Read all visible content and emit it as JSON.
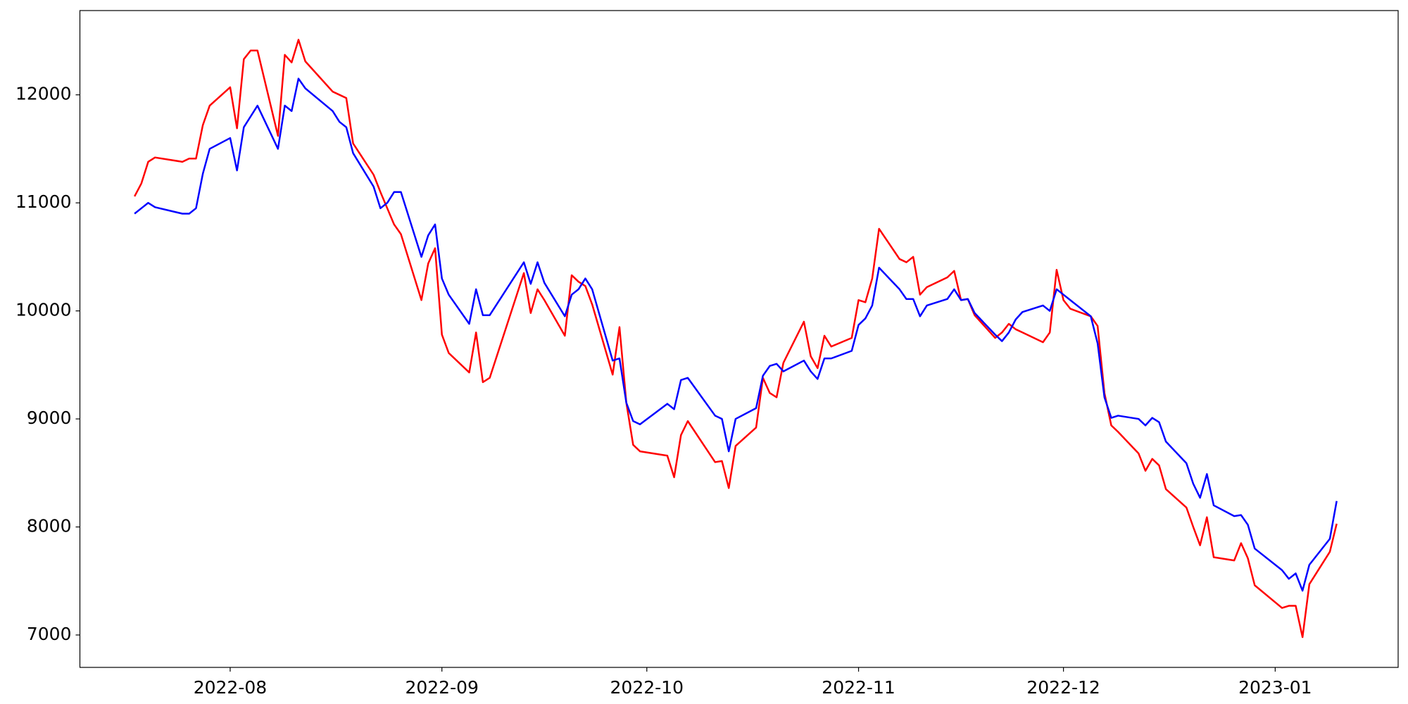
{
  "chart_data": {
    "type": "line",
    "x": [
      "2022-07-18",
      "2022-07-19",
      "2022-07-20",
      "2022-07-21",
      "2022-07-25",
      "2022-07-26",
      "2022-07-27",
      "2022-07-28",
      "2022-07-29",
      "2022-08-01",
      "2022-08-02",
      "2022-08-03",
      "2022-08-04",
      "2022-08-05",
      "2022-08-08",
      "2022-08-09",
      "2022-08-10",
      "2022-08-11",
      "2022-08-12",
      "2022-08-16",
      "2022-08-17",
      "2022-08-18",
      "2022-08-19",
      "2022-08-22",
      "2022-08-23",
      "2022-08-24",
      "2022-08-25",
      "2022-08-26",
      "2022-08-29",
      "2022-08-30",
      "2022-08-31",
      "2022-09-01",
      "2022-09-02",
      "2022-09-05",
      "2022-09-06",
      "2022-09-07",
      "2022-09-08",
      "2022-09-13",
      "2022-09-14",
      "2022-09-15",
      "2022-09-16",
      "2022-09-19",
      "2022-09-20",
      "2022-09-21",
      "2022-09-22",
      "2022-09-23",
      "2022-09-26",
      "2022-09-27",
      "2022-09-28",
      "2022-09-29",
      "2022-09-30",
      "2022-10-04",
      "2022-10-05",
      "2022-10-06",
      "2022-10-07",
      "2022-10-11",
      "2022-10-12",
      "2022-10-13",
      "2022-10-14",
      "2022-10-17",
      "2022-10-18",
      "2022-10-19",
      "2022-10-20",
      "2022-10-21",
      "2022-10-24",
      "2022-10-25",
      "2022-10-26",
      "2022-10-27",
      "2022-10-28",
      "2022-10-31",
      "2022-11-01",
      "2022-11-02",
      "2022-11-03",
      "2022-11-04",
      "2022-11-07",
      "2022-11-08",
      "2022-11-09",
      "2022-11-10",
      "2022-11-11",
      "2022-11-14",
      "2022-11-15",
      "2022-11-16",
      "2022-11-17",
      "2022-11-18",
      "2022-11-21",
      "2022-11-22",
      "2022-11-23",
      "2022-11-24",
      "2022-11-25",
      "2022-11-28",
      "2022-11-29",
      "2022-11-30",
      "2022-12-01",
      "2022-12-02",
      "2022-12-05",
      "2022-12-06",
      "2022-12-07",
      "2022-12-08",
      "2022-12-09",
      "2022-12-12",
      "2022-12-13",
      "2022-12-14",
      "2022-12-15",
      "2022-12-16",
      "2022-12-19",
      "2022-12-20",
      "2022-12-21",
      "2022-12-22",
      "2022-12-23",
      "2022-12-26",
      "2022-12-27",
      "2022-12-28",
      "2022-12-29",
      "2023-01-02",
      "2023-01-03",
      "2023-01-04",
      "2023-01-05",
      "2023-01-06",
      "2023-01-09",
      "2023-01-10"
    ],
    "series": [
      {
        "color": "#ff0000",
        "values": [
          11060,
          11180,
          11380,
          11420,
          11380,
          11410,
          11410,
          11720,
          11900,
          12070,
          11690,
          12330,
          12410,
          12410,
          11620,
          12370,
          12300,
          12510,
          12310,
          12030,
          12000,
          11970,
          11550,
          11260,
          11100,
          10950,
          10800,
          10710,
          10100,
          10440,
          10580,
          9780,
          9610,
          9430,
          9800,
          9340,
          9380,
          10350,
          9980,
          10200,
          10100,
          9770,
          10330,
          10270,
          10230,
          10060,
          9410,
          9850,
          9150,
          8760,
          8700,
          8660,
          8460,
          8850,
          8980,
          8600,
          8610,
          8360,
          8750,
          8920,
          9380,
          9240,
          9200,
          9520,
          9900,
          9580,
          9470,
          9770,
          9670,
          9750,
          10100,
          10080,
          10300,
          10760,
          10480,
          10450,
          10500,
          10150,
          10220,
          10310,
          10370,
          10100,
          10110,
          9960,
          9750,
          9800,
          9880,
          9830,
          9800,
          9710,
          9800,
          10380,
          10100,
          10020,
          9950,
          9860,
          9240,
          8940,
          8880,
          8680,
          8520,
          8630,
          8570,
          8350,
          8180,
          8000,
          7830,
          8090,
          7720,
          7690,
          7850,
          7710,
          7460,
          7250,
          7270,
          7270,
          6980,
          7470,
          7770,
          8030
        ]
      },
      {
        "color": "#0000ff",
        "values": [
          10900,
          10950,
          11000,
          10960,
          10900,
          10900,
          10950,
          11270,
          11500,
          11600,
          11300,
          11700,
          11800,
          11900,
          11500,
          11900,
          11850,
          12150,
          12060,
          11850,
          11750,
          11700,
          11460,
          11150,
          10950,
          11000,
          11100,
          11100,
          10500,
          10700,
          10800,
          10300,
          10150,
          9880,
          10200,
          9960,
          9960,
          10450,
          10250,
          10450,
          10260,
          9950,
          10150,
          10200,
          10300,
          10200,
          9540,
          9560,
          9150,
          8980,
          8950,
          9140,
          9090,
          9360,
          9380,
          9030,
          9000,
          8700,
          9000,
          9100,
          9400,
          9490,
          9510,
          9440,
          9540,
          9440,
          9370,
          9560,
          9560,
          9630,
          9870,
          9930,
          10050,
          10400,
          10200,
          10110,
          10110,
          9950,
          10050,
          10110,
          10200,
          10100,
          10110,
          9980,
          9780,
          9720,
          9800,
          9920,
          9990,
          10050,
          10000,
          10200,
          10150,
          10100,
          9950,
          9700,
          9200,
          9010,
          9030,
          9000,
          8940,
          9010,
          8970,
          8790,
          8590,
          8400,
          8270,
          8490,
          8200,
          8100,
          8110,
          8020,
          7800,
          7600,
          7520,
          7570,
          7410,
          7650,
          7890,
          8240
        ]
      }
    ],
    "xlim": [
      "2022-07-10",
      "2023-01-19"
    ],
    "xticks": [
      {
        "value": "2022-08-01",
        "label": "2022-08"
      },
      {
        "value": "2022-09-01",
        "label": "2022-09"
      },
      {
        "value": "2022-10-01",
        "label": "2022-10"
      },
      {
        "value": "2022-11-01",
        "label": "2022-11"
      },
      {
        "value": "2022-12-01",
        "label": "2022-12"
      },
      {
        "value": "2023-01-01",
        "label": "2023-01"
      }
    ],
    "ylim": [
      6700,
      12780
    ],
    "yticks": [
      7000,
      8000,
      9000,
      10000,
      11000,
      12000
    ],
    "grid": false
  }
}
